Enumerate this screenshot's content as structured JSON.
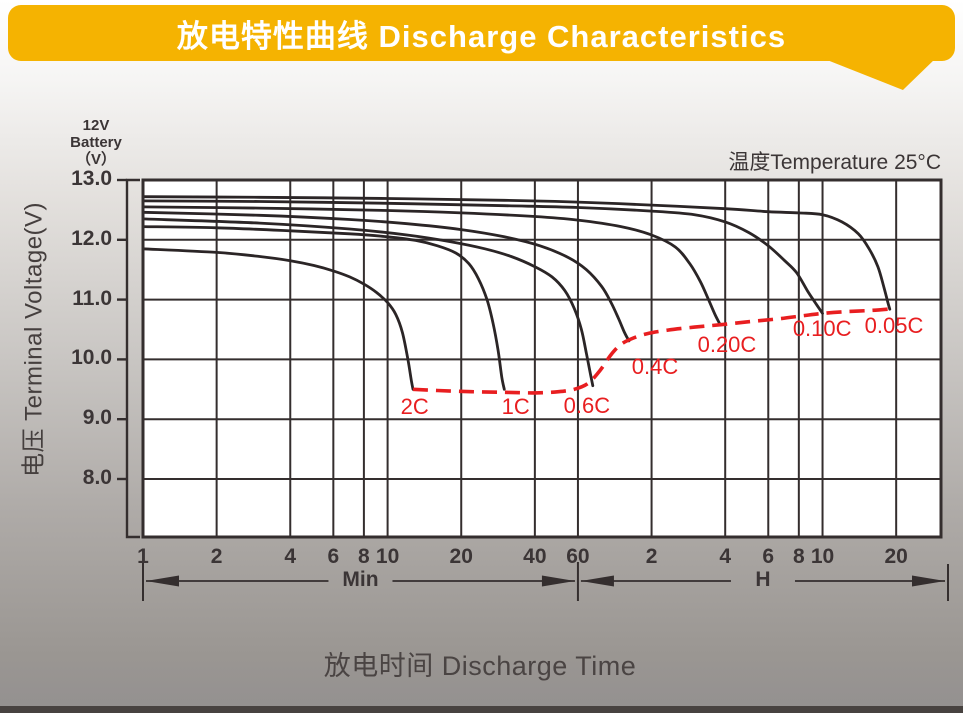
{
  "banner": {
    "title": "放电特性曲线 Discharge Characteristics",
    "bg_color": "#F5B301",
    "text_color": "#ffffff"
  },
  "chart_data": {
    "type": "line",
    "title": "放电特性曲线 Discharge Characteristics",
    "note": "温度Temperature 25°C",
    "xlabel": "放电时间 Discharge Time",
    "ylabel": "电压 Terminal Voltage(V)",
    "unit_label": [
      "12V",
      "Battery",
      "（V）"
    ],
    "x_scale": "log",
    "x_unit": "minutes",
    "xlim_minutes": [
      1,
      1830
    ],
    "ylim": [
      7.03,
      13.0
    ],
    "grid": true,
    "colors": {
      "curve": "#2b2526",
      "grid": "#342e2e",
      "plot_bg": "#ffffff",
      "cutoff": "#e81e20",
      "text": "#3b3536"
    },
    "x_ticks": [
      {
        "label": "1",
        "t": 1
      },
      {
        "label": "2",
        "t": 2
      },
      {
        "label": "4",
        "t": 4
      },
      {
        "label": "6",
        "t": 6
      },
      {
        "label": "8",
        "t": 8
      },
      {
        "label": "10",
        "t": 10
      },
      {
        "label": "20",
        "t": 20
      },
      {
        "label": "40",
        "t": 40
      },
      {
        "label": "60",
        "t": 60
      },
      {
        "label": "2",
        "t": 120
      },
      {
        "label": "4",
        "t": 240
      },
      {
        "label": "6",
        "t": 360
      },
      {
        "label": "8",
        "t": 480
      },
      {
        "label": "10",
        "t": 600
      },
      {
        "label": "20",
        "t": 1200
      }
    ],
    "x_gridline_minutes": [
      2,
      4,
      6,
      8,
      10,
      20,
      40,
      60,
      120,
      240,
      360,
      480,
      600,
      1200
    ],
    "y_ticks": [
      {
        "label": "13.0",
        "v": 13.0
      },
      {
        "label": "12.0",
        "v": 12.0
      },
      {
        "label": "11.0",
        "v": 11.0
      },
      {
        "label": "10.0",
        "v": 10.0
      },
      {
        "label": "9.0",
        "v": 9.0
      },
      {
        "label": "8.0",
        "v": 8.0
      }
    ],
    "y_gridline_volts": [
      12,
      11,
      10,
      9,
      8
    ],
    "x_unit_spans": [
      {
        "label": "Min",
        "from_min": 1,
        "to_min": 60
      },
      {
        "label": "H",
        "from_min": 60,
        "to_min": 1955
      }
    ],
    "series": [
      {
        "name": "0.05C",
        "points": [
          [
            1,
            12.72
          ],
          [
            3,
            12.71
          ],
          [
            10,
            12.69
          ],
          [
            30,
            12.66
          ],
          [
            60,
            12.63
          ],
          [
            120,
            12.58
          ],
          [
            240,
            12.52
          ],
          [
            360,
            12.47
          ],
          [
            480,
            12.45
          ],
          [
            600,
            12.42
          ],
          [
            720,
            12.3
          ],
          [
            840,
            12.1
          ],
          [
            930,
            11.85
          ],
          [
            1010,
            11.55
          ],
          [
            1070,
            11.2
          ],
          [
            1110,
            10.95
          ],
          [
            1130,
            10.84
          ]
        ]
      },
      {
        "name": "0.10C",
        "points": [
          [
            1,
            12.65
          ],
          [
            3,
            12.64
          ],
          [
            10,
            12.61
          ],
          [
            30,
            12.57
          ],
          [
            60,
            12.54
          ],
          [
            120,
            12.48
          ],
          [
            180,
            12.42
          ],
          [
            240,
            12.3
          ],
          [
            300,
            12.12
          ],
          [
            360,
            11.9
          ],
          [
            420,
            11.65
          ],
          [
            470,
            11.45
          ],
          [
            520,
            11.15
          ],
          [
            560,
            10.95
          ],
          [
            600,
            10.77
          ]
        ]
      },
      {
        "name": "0.20C",
        "points": [
          [
            1,
            12.55
          ],
          [
            3,
            12.53
          ],
          [
            10,
            12.49
          ],
          [
            20,
            12.45
          ],
          [
            40,
            12.39
          ],
          [
            60,
            12.33
          ],
          [
            90,
            12.22
          ],
          [
            120,
            12.08
          ],
          [
            150,
            11.88
          ],
          [
            172,
            11.6
          ],
          [
            190,
            11.3
          ],
          [
            205,
            11.0
          ],
          [
            218,
            10.75
          ],
          [
            229,
            10.58
          ]
        ]
      },
      {
        "name": "0.4C",
        "points": [
          [
            1,
            12.46
          ],
          [
            3,
            12.41
          ],
          [
            7,
            12.34
          ],
          [
            12,
            12.27
          ],
          [
            20,
            12.17
          ],
          [
            30,
            12.05
          ],
          [
            42,
            11.9
          ],
          [
            55,
            11.7
          ],
          [
            65,
            11.5
          ],
          [
            75,
            11.22
          ],
          [
            82,
            10.95
          ],
          [
            88,
            10.68
          ],
          [
            93,
            10.45
          ],
          [
            97,
            10.31
          ]
        ]
      },
      {
        "name": "0.6C",
        "points": [
          [
            1,
            12.35
          ],
          [
            3,
            12.28
          ],
          [
            7,
            12.18
          ],
          [
            12,
            12.08
          ],
          [
            18,
            11.97
          ],
          [
            25,
            11.85
          ],
          [
            32,
            11.72
          ],
          [
            40,
            11.55
          ],
          [
            47,
            11.38
          ],
          [
            53,
            11.15
          ],
          [
            58,
            10.85
          ],
          [
            62,
            10.5
          ],
          [
            65,
            10.1
          ],
          [
            67.5,
            9.75
          ],
          [
            69,
            9.56
          ]
        ]
      },
      {
        "name": "1C",
        "points": [
          [
            1,
            12.22
          ],
          [
            2,
            12.2
          ],
          [
            4,
            12.15
          ],
          [
            7,
            12.1
          ],
          [
            10,
            12.05
          ],
          [
            13,
            11.99
          ],
          [
            16,
            11.9
          ],
          [
            19,
            11.78
          ],
          [
            21.5,
            11.6
          ],
          [
            23.5,
            11.35
          ],
          [
            25.5,
            11.0
          ],
          [
            27,
            10.6
          ],
          [
            28.3,
            10.15
          ],
          [
            29.3,
            9.7
          ],
          [
            30,
            9.5
          ]
        ]
      },
      {
        "name": "2C",
        "points": [
          [
            1,
            11.85
          ],
          [
            2,
            11.79
          ],
          [
            3,
            11.72
          ],
          [
            4,
            11.65
          ],
          [
            5,
            11.57
          ],
          [
            6,
            11.48
          ],
          [
            7,
            11.38
          ],
          [
            8,
            11.26
          ],
          [
            9,
            11.12
          ],
          [
            10,
            10.95
          ],
          [
            10.8,
            10.75
          ],
          [
            11.5,
            10.45
          ],
          [
            12.1,
            10.0
          ],
          [
            12.5,
            9.65
          ],
          [
            12.7,
            9.5
          ]
        ]
      }
    ],
    "cutoff_locus": {
      "name": "discharge-end-locus",
      "dashed": true,
      "points": [
        [
          12.7,
          9.5
        ],
        [
          16,
          9.48
        ],
        [
          22,
          9.46
        ],
        [
          30,
          9.45
        ],
        [
          40,
          9.44
        ],
        [
          50,
          9.46
        ],
        [
          58,
          9.5
        ],
        [
          66,
          9.6
        ],
        [
          74,
          9.82
        ],
        [
          82,
          10.08
        ],
        [
          90,
          10.25
        ],
        [
          100,
          10.35
        ],
        [
          115,
          10.43
        ],
        [
          140,
          10.49
        ],
        [
          180,
          10.54
        ],
        [
          230,
          10.58
        ],
        [
          300,
          10.63
        ],
        [
          400,
          10.68
        ],
        [
          500,
          10.73
        ],
        [
          600,
          10.77
        ],
        [
          750,
          10.8
        ],
        [
          950,
          10.82
        ],
        [
          1180,
          10.85
        ]
      ]
    },
    "series_labels": [
      {
        "text": "2C",
        "t": 12.9,
        "v": 9.2
      },
      {
        "text": "1C",
        "t": 33.4,
        "v": 9.2
      },
      {
        "text": "0.6C",
        "t": 65.3,
        "v": 9.22
      },
      {
        "text": "0.4C",
        "t": 124,
        "v": 9.87
      },
      {
        "text": "0.20C",
        "t": 244,
        "v": 10.24
      },
      {
        "text": "0.10C",
        "t": 598,
        "v": 10.51
      },
      {
        "text": "0.05C",
        "t": 1176,
        "v": 10.56
      }
    ]
  }
}
